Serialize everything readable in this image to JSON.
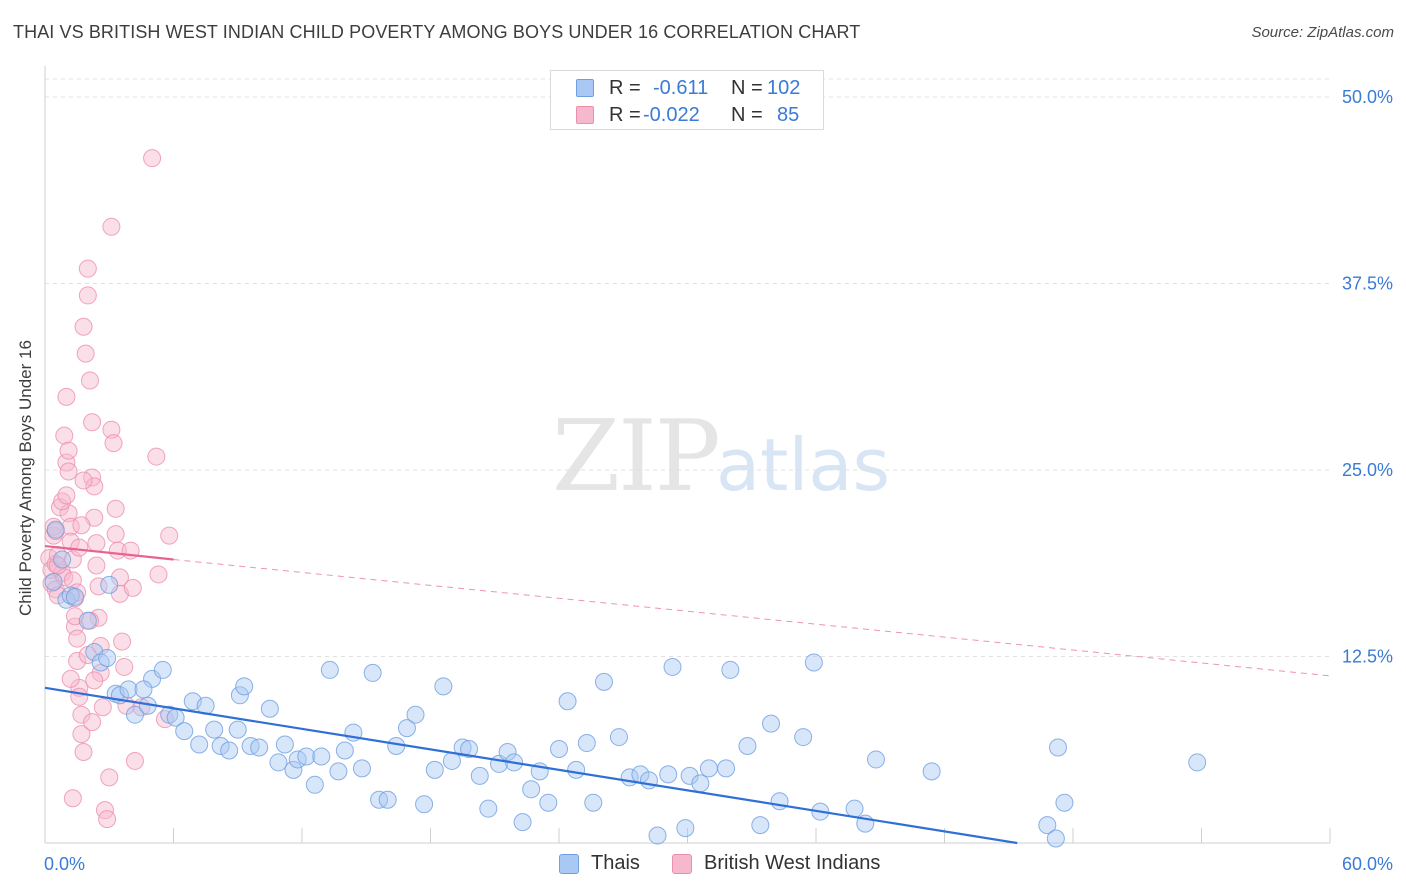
{
  "title": "THAI VS BRITISH WEST INDIAN CHILD POVERTY AMONG BOYS UNDER 16 CORRELATION CHART",
  "source": "Source: ZipAtlas.com",
  "watermark": {
    "zip": "ZIP",
    "atlas": "atlas"
  },
  "legend": {
    "rows": [
      {
        "r_label": "R =",
        "r_value": "-0.611",
        "n_label": "N =",
        "n_value": "102"
      },
      {
        "r_label": "R =",
        "r_value": "-0.022",
        "n_label": "N =",
        "n_value": "85"
      }
    ]
  },
  "colors": {
    "thai_fill": "#a9c8f3",
    "thai_stroke": "#6f9fe0",
    "thai_line": "#2f6fd6",
    "bwi_fill": "#f6b8cc",
    "bwi_stroke": "#ec8fae",
    "bwi_line": "#e8648e",
    "grid": "#e0e0e0",
    "tick_label": "#3a7bd5"
  },
  "chart_data": {
    "type": "scatter",
    "title": "THAI VS BRITISH WEST INDIAN CHILD POVERTY AMONG BOYS UNDER 16 CORRELATION CHART",
    "xlabel": "",
    "ylabel": "Child Poverty Among Boys Under 16",
    "xlim": [
      0,
      60
    ],
    "ylim": [
      0,
      50
    ],
    "x_tick_labels": [
      "0.0%",
      "60.0%"
    ],
    "y_ticks": [
      12.5,
      25.0,
      37.5,
      50.0
    ],
    "y_tick_labels": [
      "12.5%",
      "25.0%",
      "37.5%",
      "50.0%"
    ],
    "grid": true,
    "series": [
      {
        "name": "Thais",
        "r": -0.611,
        "n": 102,
        "trend": {
          "x": [
            0,
            55
          ],
          "y": [
            10.4,
            -2.2
          ]
        },
        "points": [
          [
            0.5,
            21.0
          ],
          [
            0.4,
            17.5
          ],
          [
            0.8,
            19.0
          ],
          [
            1.0,
            16.3
          ],
          [
            1.2,
            16.6
          ],
          [
            1.4,
            16.5
          ],
          [
            2.0,
            14.9
          ],
          [
            2.3,
            12.8
          ],
          [
            2.6,
            12.1
          ],
          [
            3.0,
            17.3
          ],
          [
            3.3,
            10.0
          ],
          [
            3.5,
            9.9
          ],
          [
            3.9,
            10.3
          ],
          [
            4.2,
            8.6
          ],
          [
            4.8,
            9.2
          ],
          [
            5.0,
            11.0
          ],
          [
            5.5,
            11.6
          ],
          [
            5.8,
            8.6
          ],
          [
            6.1,
            8.4
          ],
          [
            6.5,
            7.5
          ],
          [
            6.9,
            9.5
          ],
          [
            7.2,
            6.6
          ],
          [
            7.5,
            9.2
          ],
          [
            7.9,
            7.6
          ],
          [
            8.2,
            6.5
          ],
          [
            8.6,
            6.2
          ],
          [
            9.0,
            7.6
          ],
          [
            9.1,
            9.9
          ],
          [
            9.3,
            10.5
          ],
          [
            9.6,
            6.5
          ],
          [
            10.0,
            6.4
          ],
          [
            10.5,
            9.0
          ],
          [
            10.9,
            5.4
          ],
          [
            11.2,
            6.6
          ],
          [
            11.6,
            4.9
          ],
          [
            11.8,
            5.6
          ],
          [
            12.2,
            5.8
          ],
          [
            12.6,
            3.9
          ],
          [
            12.9,
            5.8
          ],
          [
            13.3,
            11.6
          ],
          [
            13.7,
            4.8
          ],
          [
            14.0,
            6.2
          ],
          [
            14.4,
            7.4
          ],
          [
            14.8,
            5.0
          ],
          [
            15.3,
            11.4
          ],
          [
            15.6,
            2.9
          ],
          [
            16.0,
            2.9
          ],
          [
            16.4,
            6.5
          ],
          [
            16.9,
            7.7
          ],
          [
            17.3,
            8.6
          ],
          [
            17.7,
            2.6
          ],
          [
            18.2,
            4.9
          ],
          [
            18.6,
            10.5
          ],
          [
            19.0,
            5.5
          ],
          [
            19.5,
            6.4
          ],
          [
            19.8,
            6.3
          ],
          [
            20.3,
            4.5
          ],
          [
            20.7,
            2.3
          ],
          [
            21.2,
            5.3
          ],
          [
            21.6,
            6.1
          ],
          [
            21.9,
            5.4
          ],
          [
            22.3,
            1.4
          ],
          [
            22.7,
            3.6
          ],
          [
            23.1,
            4.8
          ],
          [
            23.5,
            2.7
          ],
          [
            24.0,
            6.3
          ],
          [
            24.4,
            9.5
          ],
          [
            24.8,
            4.9
          ],
          [
            25.3,
            6.7
          ],
          [
            25.6,
            2.7
          ],
          [
            26.1,
            10.8
          ],
          [
            26.8,
            7.1
          ],
          [
            27.3,
            4.4
          ],
          [
            27.8,
            4.6
          ],
          [
            28.2,
            4.2
          ],
          [
            28.6,
            0.5
          ],
          [
            29.1,
            4.6
          ],
          [
            29.3,
            11.8
          ],
          [
            29.9,
            1.0
          ],
          [
            30.1,
            4.5
          ],
          [
            30.6,
            4.0
          ],
          [
            31.0,
            5.0
          ],
          [
            31.8,
            5.0
          ],
          [
            32.0,
            11.6
          ],
          [
            32.8,
            6.5
          ],
          [
            33.4,
            1.2
          ],
          [
            33.9,
            8.0
          ],
          [
            34.3,
            2.8
          ],
          [
            35.4,
            7.1
          ],
          [
            35.9,
            12.1
          ],
          [
            36.2,
            2.1
          ],
          [
            37.8,
            2.3
          ],
          [
            38.3,
            1.3
          ],
          [
            38.8,
            5.6
          ],
          [
            41.4,
            4.8
          ],
          [
            46.8,
            1.2
          ],
          [
            47.2,
            0.3
          ],
          [
            47.3,
            6.4
          ],
          [
            47.6,
            2.7
          ],
          [
            53.8,
            5.4
          ],
          [
            2.9,
            12.4
          ],
          [
            4.6,
            10.3
          ]
        ]
      },
      {
        "name": "British West Indians",
        "r": -0.022,
        "n": 85,
        "trend": {
          "x": [
            0,
            6
          ],
          "y": [
            19.9,
            19.0
          ],
          "x_extended": [
            6,
            60
          ],
          "y_extended": [
            19.0,
            11.2
          ]
        },
        "points": [
          [
            0.2,
            19.1
          ],
          [
            0.3,
            18.3
          ],
          [
            0.3,
            17.4
          ],
          [
            0.4,
            20.6
          ],
          [
            0.4,
            21.2
          ],
          [
            0.5,
            18.7
          ],
          [
            0.5,
            17.0
          ],
          [
            0.6,
            16.6
          ],
          [
            0.6,
            19.3
          ],
          [
            0.7,
            22.5
          ],
          [
            0.8,
            18.1
          ],
          [
            0.9,
            17.8
          ],
          [
            0.9,
            27.3
          ],
          [
            1.0,
            29.9
          ],
          [
            1.0,
            25.5
          ],
          [
            1.1,
            24.9
          ],
          [
            1.1,
            22.1
          ],
          [
            1.2,
            21.2
          ],
          [
            1.2,
            20.2
          ],
          [
            1.3,
            19.0
          ],
          [
            1.3,
            17.6
          ],
          [
            1.4,
            16.4
          ],
          [
            1.4,
            14.5
          ],
          [
            1.5,
            13.7
          ],
          [
            1.5,
            12.2
          ],
          [
            1.6,
            10.4
          ],
          [
            1.6,
            9.8
          ],
          [
            1.7,
            8.6
          ],
          [
            1.7,
            7.3
          ],
          [
            1.8,
            6.1
          ],
          [
            1.8,
            34.6
          ],
          [
            1.9,
            32.8
          ],
          [
            2.0,
            36.7
          ],
          [
            2.0,
            38.5
          ],
          [
            2.1,
            31.0
          ],
          [
            2.2,
            28.2
          ],
          [
            2.2,
            24.5
          ],
          [
            2.3,
            23.9
          ],
          [
            2.3,
            21.8
          ],
          [
            2.4,
            20.1
          ],
          [
            2.4,
            18.6
          ],
          [
            2.5,
            17.2
          ],
          [
            2.5,
            15.1
          ],
          [
            2.6,
            13.2
          ],
          [
            2.6,
            11.4
          ],
          [
            2.7,
            9.1
          ],
          [
            2.8,
            2.2
          ],
          [
            2.9,
            1.6
          ],
          [
            3.0,
            4.4
          ],
          [
            3.1,
            41.3
          ],
          [
            3.1,
            27.7
          ],
          [
            3.2,
            26.8
          ],
          [
            3.3,
            22.4
          ],
          [
            3.3,
            20.7
          ],
          [
            3.4,
            19.6
          ],
          [
            3.5,
            17.8
          ],
          [
            3.5,
            16.7
          ],
          [
            3.6,
            13.5
          ],
          [
            3.7,
            11.8
          ],
          [
            3.8,
            9.2
          ],
          [
            4.0,
            19.6
          ],
          [
            4.1,
            17.1
          ],
          [
            4.2,
            5.5
          ],
          [
            4.5,
            9.1
          ],
          [
            5.0,
            45.9
          ],
          [
            5.2,
            25.9
          ],
          [
            5.3,
            18.0
          ],
          [
            5.6,
            8.3
          ],
          [
            5.8,
            20.6
          ],
          [
            0.8,
            22.9
          ],
          [
            1.0,
            23.3
          ],
          [
            1.1,
            26.3
          ],
          [
            1.2,
            11.0
          ],
          [
            1.3,
            3.0
          ],
          [
            1.4,
            15.2
          ],
          [
            1.5,
            16.8
          ],
          [
            1.6,
            19.8
          ],
          [
            1.7,
            21.3
          ],
          [
            1.8,
            24.3
          ],
          [
            2.0,
            12.6
          ],
          [
            2.1,
            14.9
          ],
          [
            2.2,
            8.1
          ],
          [
            2.3,
            10.9
          ],
          [
            0.5,
            20.9
          ],
          [
            0.6,
            18.6
          ]
        ]
      }
    ]
  },
  "bottom_legend": [
    "Thais",
    "British West Indians"
  ]
}
